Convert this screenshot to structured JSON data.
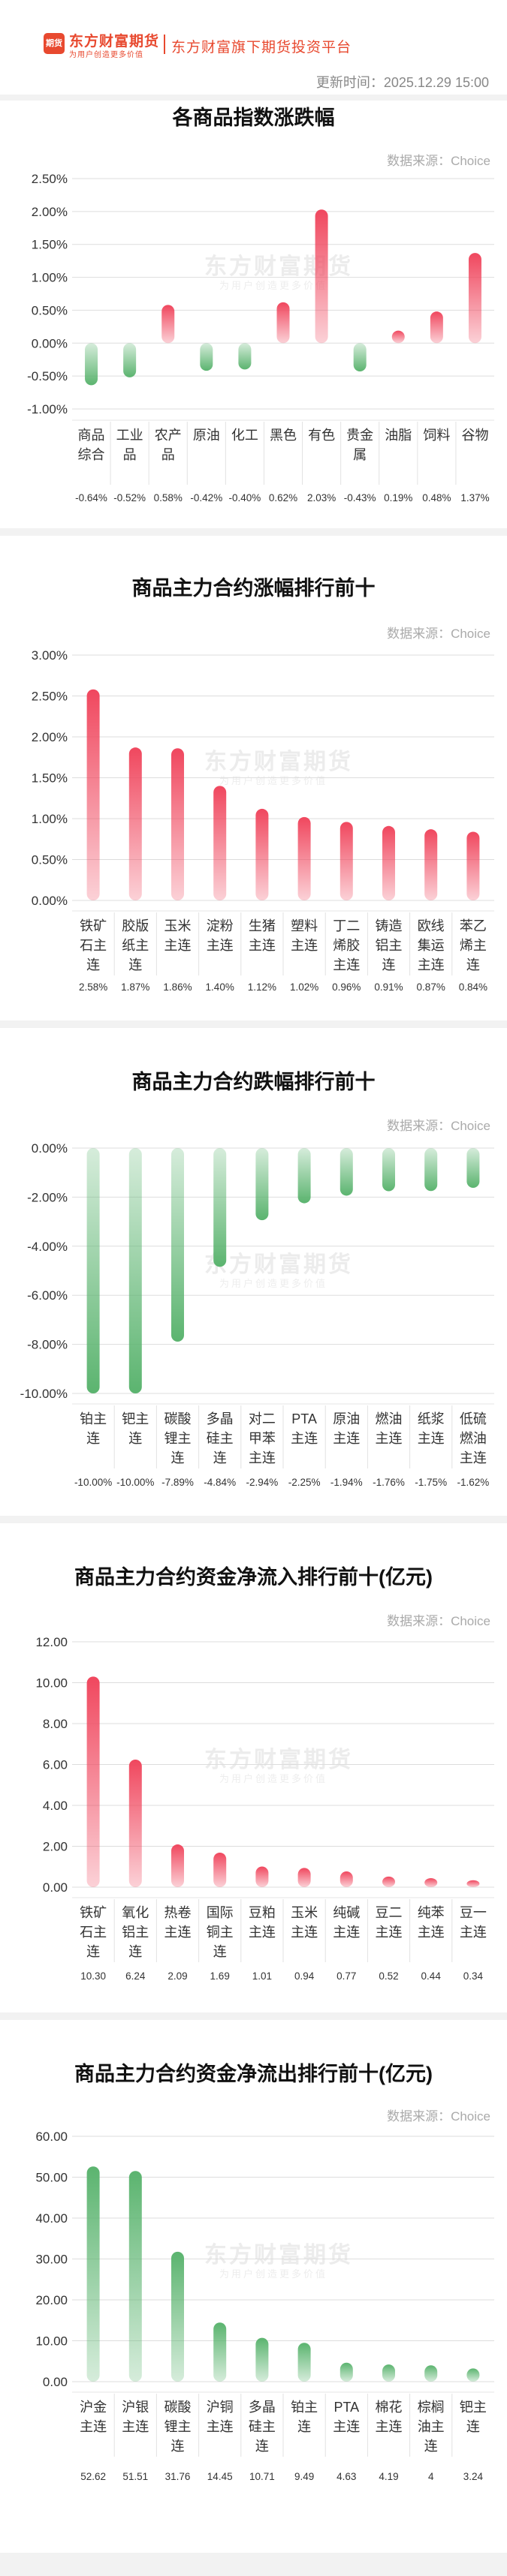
{
  "header": {
    "logo_glyph": "期货",
    "logo_name": "东方财富期货",
    "logo_slogan": "为用户创造更多价值",
    "platform": "东方财富旗下期货投资平台",
    "update_time": "更新时间：2025.12.29 15:00"
  },
  "watermark": {
    "name": "东方财富期货",
    "slogan": "为用户创造更多价值"
  },
  "colors": {
    "up": "#f0475e",
    "down": "#5bb46f",
    "grid": "#dddddd",
    "axis": "#555555"
  },
  "chart_data": [
    {
      "type": "bar",
      "title": "各商品指数涨跌幅",
      "source": "数据来源：Choice",
      "categories": [
        "商品\n综合",
        "工业\n品",
        "农产\n品",
        "原油",
        "化工",
        "黑色",
        "有色",
        "贵金\n属",
        "油脂",
        "饲料",
        "谷物"
      ],
      "values": [
        -0.64,
        -0.52,
        0.58,
        -0.42,
        -0.4,
        0.62,
        2.03,
        -0.43,
        0.19,
        0.48,
        1.37
      ],
      "value_labels": [
        "-0.64%",
        "-0.52%",
        "0.58%",
        "-0.42%",
        "-0.40%",
        "0.62%",
        "2.03%",
        "-0.43%",
        "0.19%",
        "0.48%",
        "1.37%"
      ],
      "yticks": [
        "-1.00%",
        "-0.50%",
        "0.00%",
        "0.50%",
        "1.00%",
        "1.50%",
        "2.00%",
        "2.50%"
      ],
      "ylim": [
        -1.0,
        2.5
      ],
      "color_mode": "sign"
    },
    {
      "type": "bar",
      "title": "商品主力合约涨幅排行前十",
      "source": "数据来源：Choice",
      "categories": [
        "铁矿\n石主\n连",
        "胶版\n纸主\n连",
        "玉米\n主连",
        "淀粉\n主连",
        "生猪\n主连",
        "塑料\n主连",
        "丁二\n烯胶\n主连",
        "铸造\n铝主\n连",
        "欧线\n集运\n主连",
        "苯乙\n烯主\n连"
      ],
      "values": [
        2.58,
        1.87,
        1.86,
        1.4,
        1.12,
        1.02,
        0.96,
        0.91,
        0.87,
        0.84
      ],
      "value_labels": [
        "2.58%",
        "1.87%",
        "1.86%",
        "1.40%",
        "1.12%",
        "1.02%",
        "0.96%",
        "0.91%",
        "0.87%",
        "0.84%"
      ],
      "yticks": [
        "0.00%",
        "0.50%",
        "1.00%",
        "1.50%",
        "2.00%",
        "2.50%",
        "3.00%"
      ],
      "ylim": [
        0,
        3.0
      ],
      "color_mode": "up"
    },
    {
      "type": "bar",
      "title": "商品主力合约跌幅排行前十",
      "source": "数据来源：Choice",
      "categories": [
        "铂主\n连",
        "钯主\n连",
        "碳酸\n锂主\n连",
        "多晶\n硅主\n连",
        "对二\n甲苯\n主连",
        "PTA\n主连",
        "原油\n主连",
        "燃油\n主连",
        "纸浆\n主连",
        "低硫\n燃油\n主连"
      ],
      "values": [
        -10.0,
        -10.0,
        -7.89,
        -4.84,
        -2.94,
        -2.25,
        -1.94,
        -1.76,
        -1.75,
        -1.62
      ],
      "value_labels": [
        "-10.00%",
        "-10.00%",
        "-7.89%",
        "-4.84%",
        "-2.94%",
        "-2.25%",
        "-1.94%",
        "-1.76%",
        "-1.75%",
        "-1.62%"
      ],
      "yticks": [
        "-10.00%",
        "-8.00%",
        "-6.00%",
        "-4.00%",
        "-2.00%",
        "0.00%"
      ],
      "ylim": [
        -10.0,
        0
      ],
      "color_mode": "down"
    },
    {
      "type": "bar",
      "title": "商品主力合约资金净流入排行前十(亿元)",
      "source": "数据来源：Choice",
      "categories": [
        "铁矿\n石主\n连",
        "氧化\n铝主\n连",
        "热卷\n主连",
        "国际\n铜主\n连",
        "豆粕\n主连",
        "玉米\n主连",
        "纯碱\n主连",
        "豆二\n主连",
        "纯苯\n主连",
        "豆一\n主连"
      ],
      "values": [
        10.3,
        6.24,
        2.09,
        1.69,
        1.01,
        0.94,
        0.77,
        0.52,
        0.44,
        0.34
      ],
      "value_labels": [
        "10.30",
        "6.24",
        "2.09",
        "1.69",
        "1.01",
        "0.94",
        "0.77",
        "0.52",
        "0.44",
        "0.34"
      ],
      "yticks": [
        "0.00",
        "2.00",
        "4.00",
        "6.00",
        "8.00",
        "10.00",
        "12.00"
      ],
      "ylim": [
        0,
        12.0
      ],
      "color_mode": "up"
    },
    {
      "type": "bar",
      "title": "商品主力合约资金净流出排行前十(亿元)",
      "source": "数据来源：Choice",
      "categories": [
        "沪金\n主连",
        "沪银\n主连",
        "碳酸\n锂主\n连",
        "沪铜\n主连",
        "多晶\n硅主\n连",
        "铂主\n连",
        "PTA\n主连",
        "棉花\n主连",
        "棕榈\n油主\n连",
        "钯主\n连"
      ],
      "values": [
        52.62,
        51.51,
        31.76,
        14.45,
        10.71,
        9.49,
        4.63,
        4.19,
        4,
        3.24
      ],
      "value_labels": [
        "52.62",
        "51.51",
        "31.76",
        "14.45",
        "10.71",
        "9.49",
        "4.63",
        "4.19",
        "4",
        "3.24"
      ],
      "yticks": [
        "0.00",
        "10.00",
        "20.00",
        "30.00",
        "40.00",
        "50.00",
        "60.00"
      ],
      "ylim": [
        0,
        60.0
      ],
      "color_mode": "down"
    }
  ]
}
